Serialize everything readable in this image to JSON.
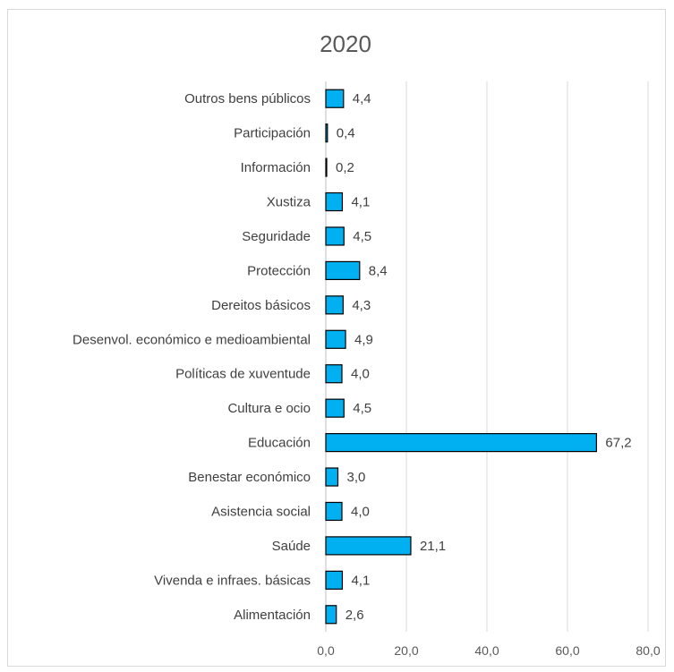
{
  "chart_data": {
    "type": "bar",
    "orientation": "horizontal",
    "title": "2020",
    "categories": [
      "Outros bens públicos",
      "Participación",
      "Información",
      "Xustiza",
      "Seguridade",
      "Protección",
      "Dereitos básicos",
      "Desenvol. económico e medioambiental",
      "Políticas de xuventude",
      "Cultura e ocio",
      "Educación",
      "Benestar económico",
      "Asistencia social",
      "Saúde",
      "Vivenda e infraes. básicas",
      "Alimentación"
    ],
    "values": [
      4.4,
      0.4,
      0.2,
      4.1,
      4.5,
      8.4,
      4.3,
      4.9,
      4.0,
      4.5,
      67.2,
      3.0,
      4.0,
      21.1,
      4.1,
      2.6
    ],
    "value_labels": [
      "4,4",
      "0,4",
      "0,2",
      "4,1",
      "4,5",
      "8,4",
      "4,3",
      "4,9",
      "4,0",
      "4,5",
      "67,2",
      "3,0",
      "4,0",
      "21,1",
      "4,1",
      "2,6"
    ],
    "xlim": [
      0,
      80
    ],
    "x_ticks": [
      "0,0",
      "20,0",
      "40,0",
      "60,0",
      "80,0"
    ],
    "grid": true,
    "legend": "none",
    "xlabel": "",
    "ylabel": "",
    "colors": {
      "bar": "#00B0F0",
      "bar_edge": "#000000",
      "grid": "#d9d9d9",
      "text": "#404040"
    }
  }
}
